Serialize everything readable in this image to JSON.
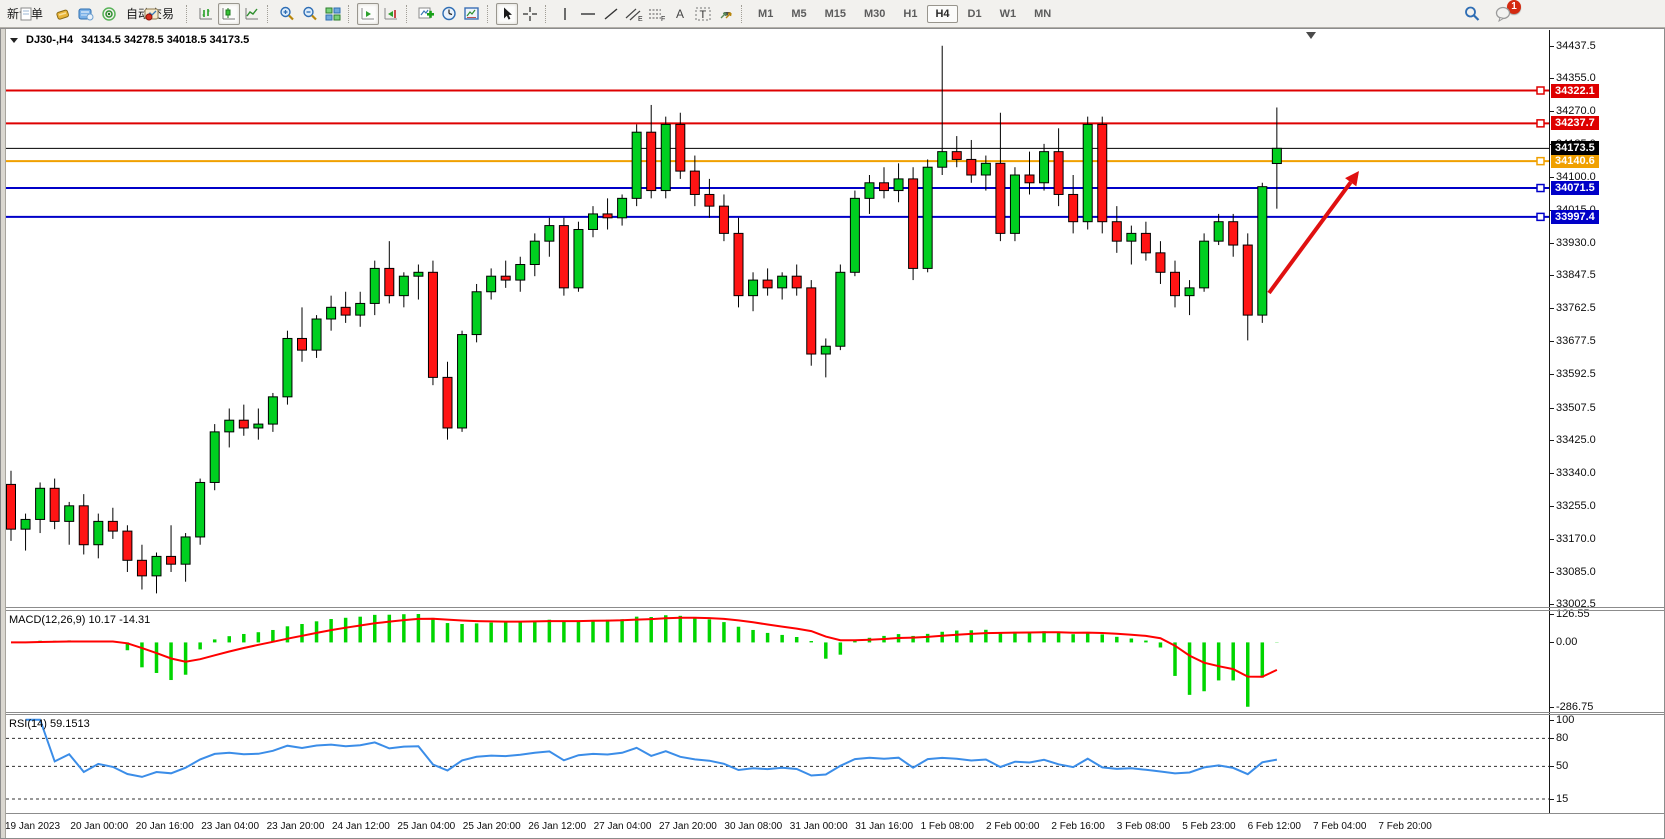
{
  "toolbar": {
    "new_order_label": "新订单",
    "auto_trading_label": "自动交易",
    "timeframes": [
      "M1",
      "M5",
      "M15",
      "M30",
      "H1",
      "H4",
      "D1",
      "W1",
      "MN"
    ],
    "active_timeframe": "H4",
    "notification_count": "1"
  },
  "chart": {
    "symbol_period": "DJ30-,H4",
    "ohlc_text": "34134.5 34278.5 34018.5 34173.5",
    "ylim": [
      32995,
      34475
    ]
  },
  "price_axis": {
    "ticks": [
      "34437.5",
      "34355.0",
      "34270.0",
      "34185.0",
      "34100.0",
      "34015.0",
      "33930.0",
      "33847.5",
      "33762.5",
      "33677.5",
      "33592.5",
      "33507.5",
      "33425.0",
      "33340.0",
      "33255.0",
      "33170.0",
      "33085.0",
      "33002.5"
    ]
  },
  "hlines": [
    {
      "price": 34322.1,
      "label": "34322.1",
      "color_key": "line_red"
    },
    {
      "price": 34237.7,
      "label": "34237.7",
      "color_key": "line_red"
    },
    {
      "price": 34140.6,
      "label": "34140.6",
      "color_key": "line_orange"
    },
    {
      "price": 34071.5,
      "label": "34071.5",
      "color_key": "line_blue"
    },
    {
      "price": 33997.4,
      "label": "33997.4",
      "color_key": "line_blue"
    }
  ],
  "current_price": {
    "price": 34173.5,
    "label": "34173.5"
  },
  "arrow": {
    "from": [
      1263,
      262
    ],
    "to": [
      1353,
      140
    ]
  },
  "macd": {
    "name": "MACD(12,26,9)",
    "values": "10.17 -14.31",
    "params": [
      12,
      26,
      9
    ],
    "ticks": [
      {
        "v": 126.55,
        "label": "126.55"
      },
      {
        "v": 0,
        "label": "0.00"
      },
      {
        "v": -286.75,
        "label": "-286.75"
      }
    ],
    "range": [
      -310,
      140
    ]
  },
  "rsi": {
    "name": "RSI(14)",
    "value": "59.1513",
    "period": 14,
    "ticks": [
      {
        "v": 100,
        "label": "100",
        "dash": false
      },
      {
        "v": 80,
        "label": "80",
        "dash": true
      },
      {
        "v": 50,
        "label": "50",
        "dash": true
      },
      {
        "v": 15,
        "label": "15",
        "dash": true
      }
    ],
    "range": [
      0,
      105
    ]
  },
  "time_axis": [
    "19 Jan 2023",
    "20 Jan 00:00",
    "20 Jan 16:00",
    "23 Jan 04:00",
    "23 Jan 20:00",
    "24 Jan 12:00",
    "25 Jan 04:00",
    "25 Jan 20:00",
    "26 Jan 12:00",
    "27 Jan 04:00",
    "27 Jan 20:00",
    "30 Jan 08:00",
    "31 Jan 00:00",
    "31 Jan 16:00",
    "1 Feb 08:00",
    "2 Feb 00:00",
    "2 Feb 16:00",
    "3 Feb 08:00",
    "5 Feb 23:00",
    "6 Feb 12:00",
    "7 Feb 04:00",
    "7 Feb 20:00"
  ],
  "colors": {
    "up": "#00CF20",
    "down": "#FF1414",
    "wick": "#000000",
    "macd_hist": "#00D500",
    "macd_signal": "#FF0000",
    "rsi_line": "#3B8DE8",
    "line_red": "#DE0000",
    "line_orange": "#F0A000",
    "line_blue": "#0000C8",
    "current": "#000000",
    "arrow": "#E01010"
  },
  "chart_data": {
    "type": "candlestick",
    "symbol": "DJ30-",
    "timeframe": "H4",
    "ylim": [
      32995,
      34475
    ],
    "ohlc": [
      [
        33310,
        33345,
        33165,
        33195
      ],
      [
        33195,
        33235,
        33140,
        33220
      ],
      [
        33220,
        33315,
        33185,
        33300
      ],
      [
        33300,
        33325,
        33195,
        33215
      ],
      [
        33215,
        33265,
        33155,
        33255
      ],
      [
        33255,
        33285,
        33130,
        33155
      ],
      [
        33155,
        33235,
        33120,
        33215
      ],
      [
        33215,
        33250,
        33170,
        33190
      ],
      [
        33190,
        33205,
        33085,
        33115
      ],
      [
        33115,
        33155,
        33040,
        33075
      ],
      [
        33075,
        33135,
        33030,
        33125
      ],
      [
        33125,
        33205,
        33085,
        33105
      ],
      [
        33105,
        33185,
        33060,
        33175
      ],
      [
        33175,
        33325,
        33155,
        33315
      ],
      [
        33315,
        33465,
        33295,
        33445
      ],
      [
        33445,
        33505,
        33405,
        33475
      ],
      [
        33475,
        33515,
        33435,
        33455
      ],
      [
        33455,
        33505,
        33425,
        33465
      ],
      [
        33465,
        33545,
        33445,
        33535
      ],
      [
        33535,
        33705,
        33515,
        33685
      ],
      [
        33685,
        33765,
        33625,
        33655
      ],
      [
        33655,
        33745,
        33635,
        33735
      ],
      [
        33735,
        33795,
        33705,
        33765
      ],
      [
        33765,
        33805,
        33725,
        33745
      ],
      [
        33745,
        33805,
        33715,
        33775
      ],
      [
        33775,
        33885,
        33745,
        33865
      ],
      [
        33865,
        33935,
        33775,
        33795
      ],
      [
        33795,
        33855,
        33765,
        33845
      ],
      [
        33845,
        33875,
        33785,
        33855
      ],
      [
        33855,
        33885,
        33565,
        33585
      ],
      [
        33585,
        33625,
        33425,
        33455
      ],
      [
        33455,
        33705,
        33445,
        33695
      ],
      [
        33695,
        33825,
        33675,
        33805
      ],
      [
        33805,
        33865,
        33785,
        33845
      ],
      [
        33845,
        33885,
        33815,
        33835
      ],
      [
        33835,
        33895,
        33805,
        33875
      ],
      [
        33875,
        33955,
        33845,
        33935
      ],
      [
        33935,
        33995,
        33895,
        33975
      ],
      [
        33975,
        33995,
        33795,
        33815
      ],
      [
        33815,
        33985,
        33805,
        33965
      ],
      [
        33965,
        34025,
        33945,
        34005
      ],
      [
        34005,
        34045,
        33965,
        33995
      ],
      [
        33995,
        34055,
        33975,
        34045
      ],
      [
        34045,
        34235,
        34025,
        34215
      ],
      [
        34215,
        34285,
        34045,
        34065
      ],
      [
        34065,
        34255,
        34045,
        34235
      ],
      [
        34235,
        34265,
        34095,
        34115
      ],
      [
        34115,
        34155,
        34025,
        34055
      ],
      [
        34055,
        34095,
        33995,
        34025
      ],
      [
        34025,
        34055,
        33935,
        33955
      ],
      [
        33955,
        33995,
        33765,
        33795
      ],
      [
        33795,
        33855,
        33755,
        33835
      ],
      [
        33835,
        33865,
        33795,
        33815
      ],
      [
        33815,
        33855,
        33785,
        33845
      ],
      [
        33845,
        33875,
        33795,
        33815
      ],
      [
        33815,
        33835,
        33615,
        33645
      ],
      [
        33645,
        33685,
        33585,
        33665
      ],
      [
        33665,
        33875,
        33655,
        33855
      ],
      [
        33855,
        34065,
        33845,
        34045
      ],
      [
        34045,
        34105,
        34005,
        34085
      ],
      [
        34085,
        34125,
        34045,
        34065
      ],
      [
        34065,
        34135,
        34035,
        34095
      ],
      [
        34095,
        34125,
        33835,
        33865
      ],
      [
        33865,
        34145,
        33855,
        34125
      ],
      [
        34125,
        34437,
        34105,
        34165
      ],
      [
        34165,
        34205,
        34125,
        34145
      ],
      [
        34145,
        34195,
        34085,
        34105
      ],
      [
        34105,
        34155,
        34065,
        34135
      ],
      [
        34135,
        34265,
        33935,
        33955
      ],
      [
        33955,
        34125,
        33935,
        34105
      ],
      [
        34105,
        34165,
        34055,
        34085
      ],
      [
        34085,
        34185,
        34065,
        34165
      ],
      [
        34165,
        34225,
        34025,
        34055
      ],
      [
        34055,
        34105,
        33955,
        33985
      ],
      [
        33985,
        34255,
        33965,
        34235
      ],
      [
        34235,
        34255,
        33955,
        33985
      ],
      [
        33985,
        34025,
        33905,
        33935
      ],
      [
        33935,
        33975,
        33875,
        33955
      ],
      [
        33955,
        33985,
        33885,
        33905
      ],
      [
        33905,
        33935,
        33825,
        33855
      ],
      [
        33855,
        33885,
        33765,
        33795
      ],
      [
        33795,
        33835,
        33745,
        33815
      ],
      [
        33815,
        33955,
        33805,
        33935
      ],
      [
        33935,
        34005,
        33925,
        33985
      ],
      [
        33985,
        34005,
        33895,
        33925
      ],
      [
        33925,
        33955,
        33680,
        33745
      ],
      [
        33745,
        34085,
        33725,
        34075
      ],
      [
        34134.5,
        34278.5,
        34018.5,
        34173.5
      ]
    ],
    "indicators": [
      {
        "name": "MACD",
        "params": [
          12,
          26,
          9
        ],
        "display": "10.17 -14.31"
      },
      {
        "name": "RSI",
        "params": [
          14
        ],
        "display": "59.1513"
      }
    ],
    "horizontal_levels": [
      34322.1,
      34237.7,
      34140.6,
      34071.5,
      33997.4
    ],
    "current_price": 34173.5
  }
}
